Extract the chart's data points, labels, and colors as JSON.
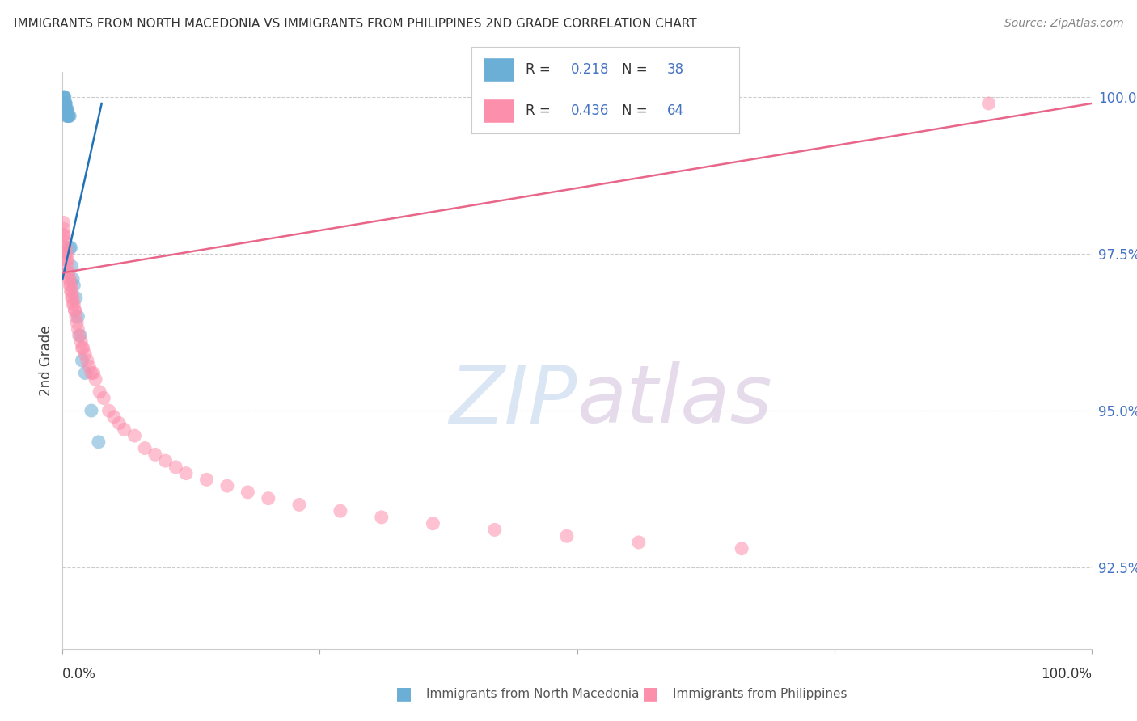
{
  "title": "IMMIGRANTS FROM NORTH MACEDONIA VS IMMIGRANTS FROM PHILIPPINES 2ND GRADE CORRELATION CHART",
  "source": "Source: ZipAtlas.com",
  "ylabel": "2nd Grade",
  "xlim": [
    0.0,
    1.0
  ],
  "ylim": [
    0.912,
    1.004
  ],
  "yticks": [
    0.925,
    0.95,
    0.975,
    1.0
  ],
  "ytick_labels": [
    "92.5%",
    "95.0%",
    "97.5%",
    "100.0%"
  ],
  "legend_r_blue": "0.218",
  "legend_n_blue": "38",
  "legend_r_pink": "0.436",
  "legend_n_pink": "64",
  "blue_color": "#6baed6",
  "pink_color": "#fc8fac",
  "blue_line_color": "#2171b5",
  "pink_line_color": "#e8668a",
  "legend_label_blue": "Immigrants from North Macedonia",
  "legend_label_pink": "Immigrants from Philippines",
  "watermark": "ZIPatlas",
  "background_color": "#ffffff",
  "grid_color": "#cccccc",
  "blue_x": [
    0.0008,
    0.001,
    0.001,
    0.0012,
    0.0015,
    0.0018,
    0.002,
    0.002,
    0.002,
    0.002,
    0.0022,
    0.0025,
    0.003,
    0.003,
    0.003,
    0.003,
    0.0035,
    0.004,
    0.004,
    0.004,
    0.005,
    0.005,
    0.005,
    0.006,
    0.006,
    0.007,
    0.007,
    0.008,
    0.009,
    0.01,
    0.011,
    0.013,
    0.015,
    0.017,
    0.019,
    0.022,
    0.028,
    0.035
  ],
  "blue_y": [
    0.999,
    0.999,
    1.0,
    1.0,
    1.0,
    0.999,
    0.999,
    0.999,
    1.0,
    0.998,
    0.999,
    0.999,
    0.998,
    0.998,
    0.999,
    0.999,
    0.998,
    0.998,
    0.998,
    0.997,
    0.997,
    0.997,
    0.998,
    0.997,
    0.997,
    0.997,
    0.976,
    0.976,
    0.973,
    0.971,
    0.97,
    0.968,
    0.965,
    0.962,
    0.958,
    0.956,
    0.95,
    0.945
  ],
  "pink_x": [
    0.0008,
    0.001,
    0.001,
    0.0015,
    0.002,
    0.002,
    0.003,
    0.003,
    0.004,
    0.004,
    0.005,
    0.005,
    0.005,
    0.006,
    0.006,
    0.007,
    0.007,
    0.008,
    0.008,
    0.009,
    0.009,
    0.01,
    0.01,
    0.011,
    0.012,
    0.012,
    0.013,
    0.014,
    0.015,
    0.016,
    0.018,
    0.019,
    0.02,
    0.022,
    0.024,
    0.026,
    0.028,
    0.03,
    0.032,
    0.036,
    0.04,
    0.045,
    0.05,
    0.055,
    0.06,
    0.07,
    0.08,
    0.09,
    0.1,
    0.11,
    0.12,
    0.14,
    0.16,
    0.18,
    0.2,
    0.23,
    0.27,
    0.31,
    0.36,
    0.42,
    0.49,
    0.56,
    0.66,
    0.9
  ],
  "pink_y": [
    0.98,
    0.979,
    0.978,
    0.978,
    0.977,
    0.976,
    0.976,
    0.975,
    0.974,
    0.975,
    0.973,
    0.972,
    0.974,
    0.972,
    0.971,
    0.971,
    0.97,
    0.97,
    0.969,
    0.968,
    0.969,
    0.968,
    0.967,
    0.967,
    0.966,
    0.966,
    0.965,
    0.964,
    0.963,
    0.962,
    0.961,
    0.96,
    0.96,
    0.959,
    0.958,
    0.957,
    0.956,
    0.956,
    0.955,
    0.953,
    0.952,
    0.95,
    0.949,
    0.948,
    0.947,
    0.946,
    0.944,
    0.943,
    0.942,
    0.941,
    0.94,
    0.939,
    0.938,
    0.937,
    0.936,
    0.935,
    0.934,
    0.933,
    0.932,
    0.931,
    0.93,
    0.929,
    0.928,
    0.999
  ],
  "blue_line_x": [
    0.0,
    0.038
  ],
  "blue_line_y": [
    0.971,
    0.999
  ],
  "pink_line_x": [
    0.0,
    1.0
  ],
  "pink_line_y": [
    0.972,
    0.999
  ]
}
